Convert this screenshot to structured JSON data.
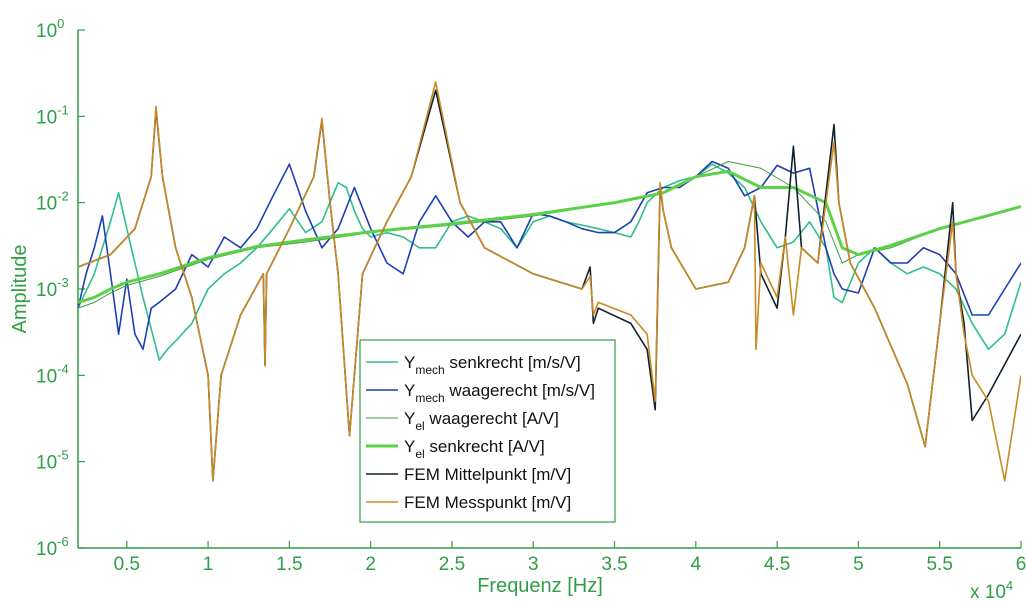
{
  "chart_data": {
    "type": "line",
    "xlabel": "Frequenz [Hz]",
    "ylabel": "Amplitude",
    "x_multiplier_label": "x 10",
    "x_multiplier_exp": "4",
    "xlim": [
      2000,
      60000
    ],
    "ylim": [
      1e-06,
      1
    ],
    "yscale": "log",
    "grid": false,
    "legend_position": "bottom-center",
    "axis_color": "#2f9e44",
    "x_ticks": [
      {
        "value": 5000,
        "label": "0.5"
      },
      {
        "value": 10000,
        "label": "1"
      },
      {
        "value": 15000,
        "label": "1.5"
      },
      {
        "value": 20000,
        "label": "2"
      },
      {
        "value": 25000,
        "label": "2.5"
      },
      {
        "value": 30000,
        "label": "3"
      },
      {
        "value": 35000,
        "label": "3.5"
      },
      {
        "value": 40000,
        "label": "4"
      },
      {
        "value": 45000,
        "label": "4.5"
      },
      {
        "value": 50000,
        "label": "5"
      },
      {
        "value": 55000,
        "label": "5.5"
      },
      {
        "value": 60000,
        "label": "6"
      }
    ],
    "y_ticks": [
      {
        "value": 1,
        "base": "10",
        "exp": "0"
      },
      {
        "value": 0.1,
        "base": "10",
        "exp": "-1"
      },
      {
        "value": 0.01,
        "base": "10",
        "exp": "-2"
      },
      {
        "value": 0.001,
        "base": "10",
        "exp": "-3"
      },
      {
        "value": 0.0001,
        "base": "10",
        "exp": "-4"
      },
      {
        "value": 1e-05,
        "base": "10",
        "exp": "-5"
      },
      {
        "value": 1e-06,
        "base": "10",
        "exp": "-6"
      }
    ],
    "series": [
      {
        "name": "Y senkrecht [m/s/V]",
        "sub": "mech",
        "pre": "Y",
        "post": " senkrecht [m/s/V]",
        "color": "#2ebf8a",
        "width": 1.6,
        "x": [
          2000,
          3000,
          3500,
          4000,
          4500,
          5000,
          5500,
          6000,
          7000,
          7500,
          8000,
          9000,
          10000,
          11000,
          12000,
          13000,
          14000,
          15000,
          16000,
          17000,
          18000,
          18500,
          19000,
          19500,
          20000,
          21000,
          22000,
          23000,
          24000,
          25000,
          26000,
          27000,
          28000,
          29000,
          30000,
          31000,
          32000,
          33000,
          34000,
          35000,
          36000,
          36500,
          37000,
          38000,
          39000,
          40000,
          41000,
          42000,
          43000,
          44000,
          45000,
          46000,
          47000,
          48000,
          48500,
          49000,
          50000,
          51000,
          52000,
          53000,
          54000,
          55000,
          56000,
          57000,
          58000,
          59000,
          60000
        ],
        "y": [
          0.0006,
          0.0015,
          0.003,
          0.006,
          0.013,
          0.005,
          0.002,
          0.0008,
          0.00015,
          0.0002,
          0.00025,
          0.0004,
          0.001,
          0.0015,
          0.002,
          0.003,
          0.005,
          0.0085,
          0.0045,
          0.006,
          0.017,
          0.015,
          0.008,
          0.005,
          0.004,
          0.0045,
          0.004,
          0.003,
          0.003,
          0.006,
          0.007,
          0.006,
          0.005,
          0.003,
          0.006,
          0.007,
          0.006,
          0.0055,
          0.005,
          0.0045,
          0.004,
          0.006,
          0.01,
          0.015,
          0.018,
          0.02,
          0.028,
          0.022,
          0.015,
          0.006,
          0.003,
          0.0035,
          0.006,
          0.003,
          0.0008,
          0.0007,
          0.002,
          0.003,
          0.002,
          0.0015,
          0.0018,
          0.0015,
          0.001,
          0.0004,
          0.0002,
          0.0003,
          0.0012
        ]
      },
      {
        "name": "Y waagerecht [m/s/V]",
        "sub": "mech",
        "pre": "Y",
        "post": " waagerecht [m/s/V]",
        "color": "#1f3fb5",
        "width": 1.6,
        "x": [
          2000,
          2500,
          3000,
          3500,
          4000,
          4500,
          5000,
          5500,
          6000,
          6500,
          7000,
          8000,
          9000,
          10000,
          11000,
          12000,
          13000,
          14000,
          15000,
          16000,
          17000,
          18000,
          19000,
          20000,
          21000,
          22000,
          23000,
          24000,
          25000,
          26000,
          27000,
          28000,
          29000,
          30000,
          31000,
          32000,
          33000,
          34000,
          35000,
          36000,
          37000,
          38000,
          39000,
          40000,
          41000,
          42000,
          43000,
          44000,
          45000,
          46000,
          47000,
          48000,
          48500,
          49000,
          50000,
          51000,
          52000,
          53000,
          54000,
          55000,
          56000,
          57000,
          58000,
          59000,
          60000
        ],
        "y": [
          0.0006,
          0.0015,
          0.003,
          0.007,
          0.0015,
          0.0003,
          0.0013,
          0.0003,
          0.0002,
          0.0006,
          0.0007,
          0.001,
          0.0025,
          0.0018,
          0.004,
          0.003,
          0.005,
          0.012,
          0.028,
          0.008,
          0.003,
          0.005,
          0.015,
          0.005,
          0.002,
          0.0015,
          0.006,
          0.012,
          0.006,
          0.004,
          0.006,
          0.006,
          0.003,
          0.0075,
          0.007,
          0.006,
          0.005,
          0.0045,
          0.0045,
          0.006,
          0.013,
          0.015,
          0.015,
          0.02,
          0.03,
          0.025,
          0.012,
          0.015,
          0.027,
          0.022,
          0.025,
          0.003,
          0.0015,
          0.001,
          0.0009,
          0.003,
          0.002,
          0.002,
          0.003,
          0.0025,
          0.0015,
          0.0005,
          0.0005,
          0.001,
          0.002
        ]
      },
      {
        "name": "Y waagerecht [A/V]",
        "sub": "el",
        "pre": "Y",
        "post": " waagerecht [A/V]",
        "color": "#3f9b3f",
        "width": 1.0,
        "x": [
          2000,
          3000,
          4000,
          5000,
          7000,
          10000,
          13000,
          16000,
          20000,
          25000,
          30000,
          35000,
          38000,
          40000,
          42000,
          44000,
          46000,
          48000,
          49000,
          50000,
          52000,
          55000,
          60000
        ],
        "y": [
          0.0006,
          0.0007,
          0.0009,
          0.0011,
          0.0014,
          0.0022,
          0.003,
          0.0035,
          0.0045,
          0.0055,
          0.007,
          0.01,
          0.013,
          0.02,
          0.03,
          0.025,
          0.015,
          0.006,
          0.002,
          0.0025,
          0.003,
          0.005,
          0.009
        ]
      },
      {
        "name": "Y senkrecht [A/V]",
        "sub": "el",
        "pre": "Y",
        "post": " senkrecht [A/V]",
        "color": "#5cd147",
        "width": 3.0,
        "x": [
          2000,
          3000,
          4000,
          5000,
          7000,
          10000,
          13000,
          16000,
          20000,
          25000,
          30000,
          35000,
          38000,
          40000,
          42000,
          44000,
          46000,
          48000,
          49000,
          50000,
          52000,
          55000,
          60000
        ],
        "y": [
          0.0007,
          0.0008,
          0.001,
          0.0012,
          0.0015,
          0.0023,
          0.0031,
          0.0037,
          0.0046,
          0.0057,
          0.0073,
          0.01,
          0.013,
          0.02,
          0.023,
          0.015,
          0.015,
          0.01,
          0.003,
          0.0025,
          0.0032,
          0.005,
          0.009
        ]
      },
      {
        "name": "FEM Mittelpunkt [m/V]",
        "sub": "",
        "pre": "FEM Mittelpunkt [m/V]",
        "post": "",
        "color": "#0f2230",
        "width": 1.6,
        "x": [
          2000,
          4000,
          5500,
          6500,
          6800,
          7200,
          8000,
          9000,
          10000,
          10300,
          10800,
          12000,
          13400,
          13500,
          13600,
          15000,
          16500,
          17000,
          17500,
          18000,
          18700,
          19500,
          21000,
          22500,
          24000,
          25500,
          27000,
          30000,
          33000,
          33500,
          33700,
          34000,
          36000,
          37000,
          37500,
          37800,
          38000,
          38500,
          40000,
          42000,
          43000,
          43600,
          44000,
          45000,
          45500,
          46000,
          46500,
          47500,
          48500,
          48800,
          49500,
          51000,
          53000,
          54100,
          55000,
          55800,
          56000,
          56500,
          57000,
          58000,
          60000
        ],
        "y": [
          0.0018,
          0.0025,
          0.005,
          0.02,
          0.12,
          0.02,
          0.003,
          0.0008,
          0.0001,
          6e-06,
          0.0001,
          0.0005,
          0.0015,
          0.00013,
          0.0015,
          0.005,
          0.02,
          0.09,
          0.01,
          0.0015,
          2e-05,
          0.0015,
          0.006,
          0.02,
          0.2,
          0.01,
          0.003,
          0.0015,
          0.001,
          0.0018,
          0.0004,
          0.0006,
          0.0004,
          0.0002,
          4e-05,
          0.015,
          0.008,
          0.003,
          0.001,
          0.0012,
          0.003,
          0.012,
          0.0015,
          0.0006,
          0.004,
          0.045,
          0.003,
          0.002,
          0.08,
          0.01,
          0.002,
          0.0006,
          8e-05,
          1.5e-05,
          0.0004,
          0.01,
          0.0015,
          0.0004,
          3e-05,
          6e-05,
          0.0003
        ]
      },
      {
        "name": "FEM Messpunkt [m/V]",
        "sub": "",
        "pre": "FEM Messpunkt [m/V]",
        "post": "",
        "color": "#c98a24",
        "width": 1.6,
        "x": [
          2000,
          4000,
          5500,
          6500,
          6800,
          7200,
          8000,
          9000,
          10000,
          10300,
          10800,
          12000,
          13400,
          13500,
          13600,
          15000,
          16500,
          17000,
          17500,
          18000,
          18700,
          19500,
          21000,
          22500,
          24000,
          25500,
          27000,
          30000,
          33000,
          33500,
          33700,
          34000,
          36000,
          37000,
          37500,
          37800,
          38000,
          38500,
          40000,
          42000,
          43000,
          43600,
          43700,
          44000,
          45000,
          45500,
          46000,
          46500,
          47500,
          48500,
          48800,
          49500,
          51000,
          53000,
          54100,
          55000,
          55800,
          56000,
          56500,
          57000,
          58000,
          59000,
          60000
        ],
        "y": [
          0.0018,
          0.0025,
          0.005,
          0.02,
          0.13,
          0.02,
          0.003,
          0.0008,
          0.0001,
          6e-06,
          0.0001,
          0.0005,
          0.0015,
          0.00013,
          0.0015,
          0.005,
          0.02,
          0.095,
          0.01,
          0.0015,
          2e-05,
          0.0015,
          0.006,
          0.02,
          0.25,
          0.01,
          0.003,
          0.0015,
          0.001,
          0.0014,
          0.0005,
          0.0007,
          0.0005,
          0.0003,
          5e-05,
          0.017,
          0.008,
          0.003,
          0.001,
          0.0012,
          0.003,
          0.012,
          0.0002,
          0.002,
          0.0008,
          0.004,
          0.0005,
          0.003,
          0.002,
          0.05,
          0.01,
          0.002,
          0.0006,
          8e-05,
          1.5e-05,
          0.0004,
          0.006,
          0.0015,
          0.0003,
          0.0001,
          5e-05,
          6e-06,
          0.0001
        ]
      }
    ]
  }
}
